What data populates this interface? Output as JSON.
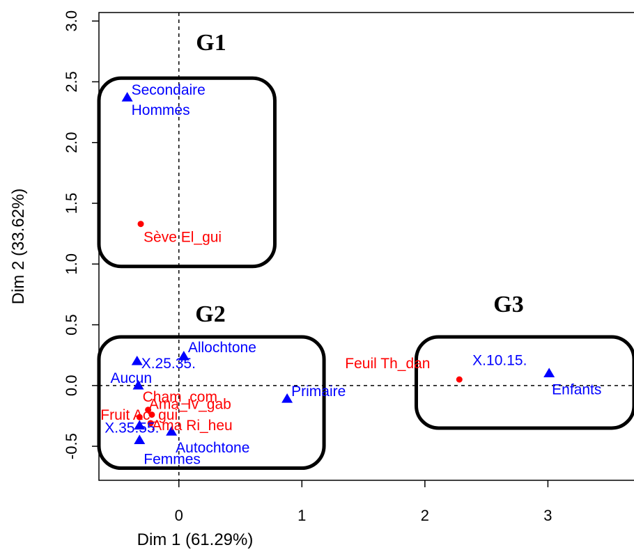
{
  "chart_data": {
    "type": "scatter",
    "xlabel": "Dim 1 (61.29%)",
    "ylabel": "Dim 2 (33.62%)",
    "xlim": [
      -0.65,
      3.7
    ],
    "ylim": [
      -0.78,
      3.07
    ],
    "x_ticks": [
      0,
      1,
      2,
      3
    ],
    "y_ticks": [
      -0.5,
      0.0,
      0.5,
      1.0,
      1.5,
      2.0,
      2.5,
      3.0
    ],
    "reference_lines": {
      "x": 0,
      "y": 0,
      "style": "dashed"
    },
    "grid": false,
    "colors": {
      "categories": "#ff0000",
      "supplementary": "#0000ff",
      "frame": "#000000"
    },
    "series": [
      {
        "marker": "circle",
        "color": "#ff0000",
        "points": [
          {
            "label": "Sève El_gui",
            "x": -0.31,
            "y": 1.33
          },
          {
            "label": "Feuil Th_dan",
            "x": 2.28,
            "y": 0.05
          },
          {
            "label": "Cham_com",
            "x": -0.25,
            "y": -0.2
          },
          {
            "label": "Ama_Iv_gab",
            "x": -0.22,
            "y": -0.24
          },
          {
            "label": "Fruit Ac_gui",
            "x": -0.32,
            "y": -0.26
          },
          {
            "label": "Ama Ri_heu",
            "x": -0.23,
            "y": -0.31
          }
        ]
      },
      {
        "marker": "triangle",
        "color": "#0000ff",
        "points": [
          {
            "label": "Secondaire",
            "x": -0.42,
            "y": 2.37
          },
          {
            "label": "Hommes",
            "x": -0.42,
            "y": 2.37
          },
          {
            "label": "Allochtone",
            "x": 0.04,
            "y": 0.24
          },
          {
            "label": "X.25.35.",
            "x": -0.34,
            "y": 0.2
          },
          {
            "label": "Aucun",
            "x": -0.33,
            "y": 0.0
          },
          {
            "label": "Primaire",
            "x": 0.88,
            "y": -0.11
          },
          {
            "label": "X.10.15.",
            "x": 3.01,
            "y": 0.1
          },
          {
            "label": "Enfants",
            "x": 3.01,
            "y": 0.1
          },
          {
            "label": "X.35.55.",
            "x": -0.32,
            "y": -0.33
          },
          {
            "label": "Autochtone",
            "x": -0.06,
            "y": -0.38
          },
          {
            "label": "Femmes",
            "x": -0.32,
            "y": -0.45
          }
        ]
      }
    ],
    "groups": [
      {
        "label": "G1",
        "x_range": [
          -0.65,
          0.78
        ],
        "y_range": [
          0.98,
          2.53
        ]
      },
      {
        "label": "G2",
        "x_range": [
          -0.65,
          1.18
        ],
        "y_range": [
          -0.68,
          0.4
        ]
      },
      {
        "label": "G3",
        "x_range": [
          1.93,
          3.7
        ],
        "y_range": [
          -0.35,
          0.4
        ]
      }
    ]
  }
}
